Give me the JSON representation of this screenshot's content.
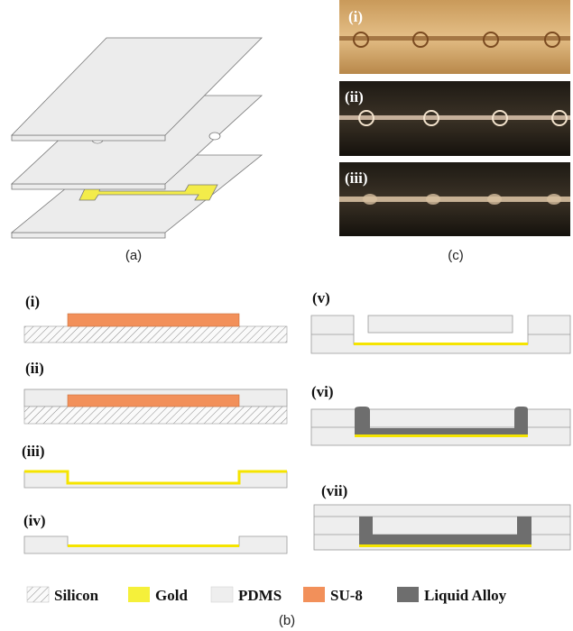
{
  "panel_labels": [
    "(a)",
    "(b)",
    "(c)"
  ],
  "photo_labels": [
    "(i)",
    "(ii)",
    "(iii)"
  ],
  "step_labels": [
    "(i)",
    "(ii)",
    "(iii)",
    "(iv)",
    "(v)",
    "(vi)",
    "(vii)"
  ],
  "legend": [
    "Silicon",
    "Gold",
    "PDMS",
    "SU-8",
    "Liquid Alloy"
  ]
}
